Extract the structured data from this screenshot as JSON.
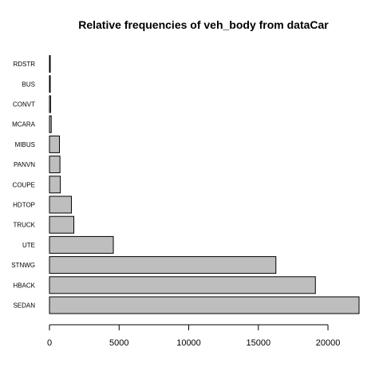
{
  "chart_data": {
    "type": "bar",
    "orientation": "horizontal",
    "title": "Relative frequencies of veh_body from dataCar",
    "xlabel": "",
    "ylabel": "",
    "categories": [
      "SEDAN",
      "HBACK",
      "STNWG",
      "UTE",
      "TRUCK",
      "HDTOP",
      "COUPE",
      "PANVN",
      "MIBUS",
      "MCARA",
      "CONVT",
      "BUS",
      "RDSTR"
    ],
    "values": [
      22233,
      19097,
      16261,
      4586,
      1750,
      1579,
      780,
      752,
      717,
      127,
      81,
      48,
      27
    ],
    "xlim": [
      0,
      22233
    ],
    "xticks": [
      0,
      5000,
      10000,
      15000,
      20000
    ],
    "bar_color": "#bebebe",
    "grid": false
  }
}
